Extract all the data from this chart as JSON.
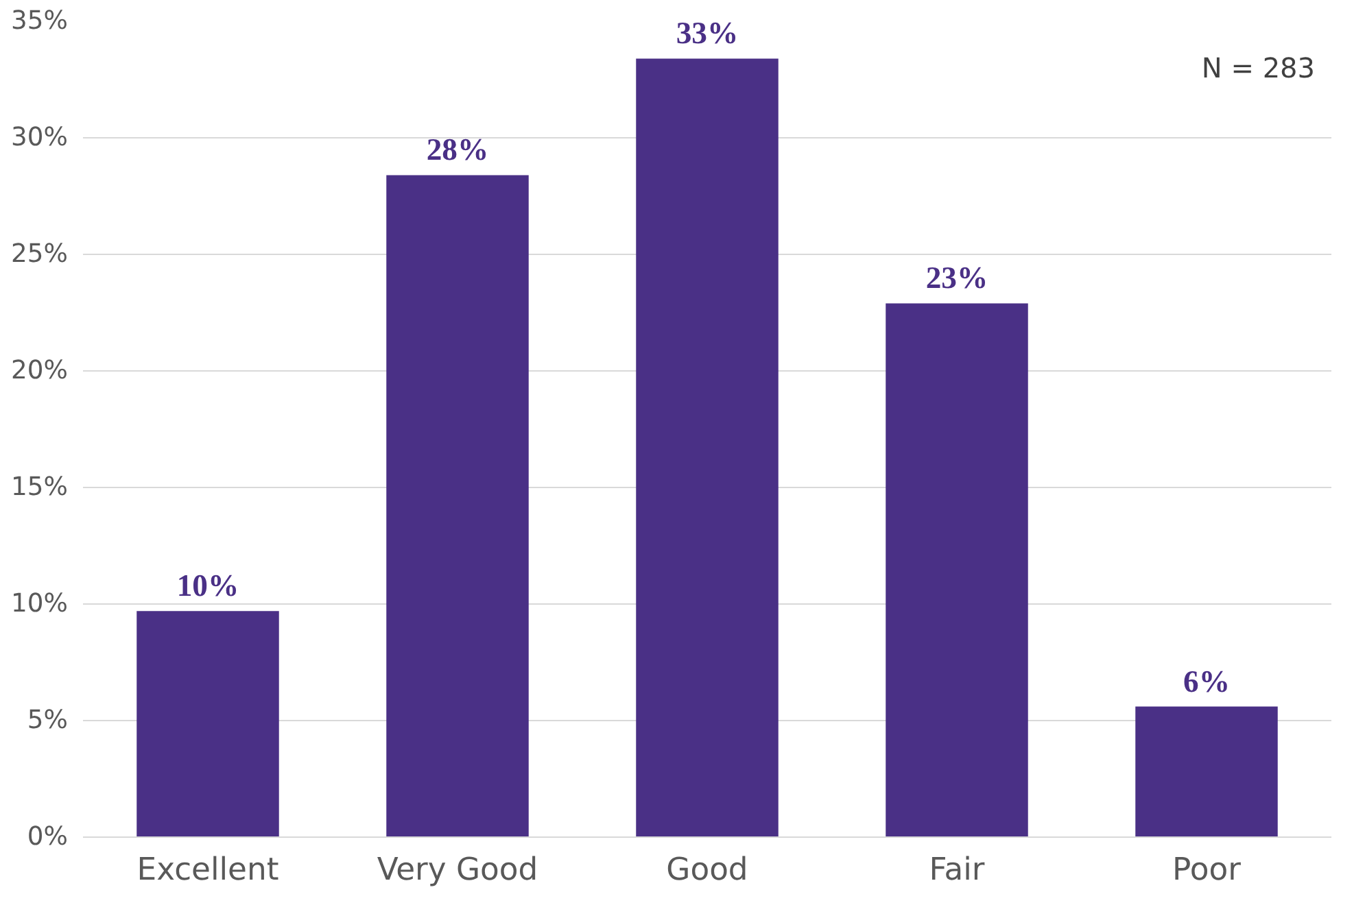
{
  "chart_data": {
    "type": "bar",
    "categories": [
      "Excellent",
      "Very Good",
      "Good",
      "Fair",
      "Poor"
    ],
    "values": [
      9.7,
      28.4,
      33.4,
      22.9,
      5.6
    ],
    "value_labels": [
      "10%",
      "28%",
      "33%",
      "23%",
      "6%"
    ],
    "color": "#4a3086",
    "ylim": [
      0,
      35
    ],
    "yticks": [
      {
        "value": 0,
        "label": "0%"
      },
      {
        "value": 5,
        "label": "5%"
      },
      {
        "value": 10,
        "label": "10%"
      },
      {
        "value": 15,
        "label": "15%"
      },
      {
        "value": 20,
        "label": "20%"
      },
      {
        "value": 25,
        "label": "25%"
      },
      {
        "value": 30,
        "label": "30%"
      },
      {
        "value": 35,
        "label": "35%"
      }
    ],
    "grid": "y",
    "annotations": [
      "N = 283"
    ]
  }
}
